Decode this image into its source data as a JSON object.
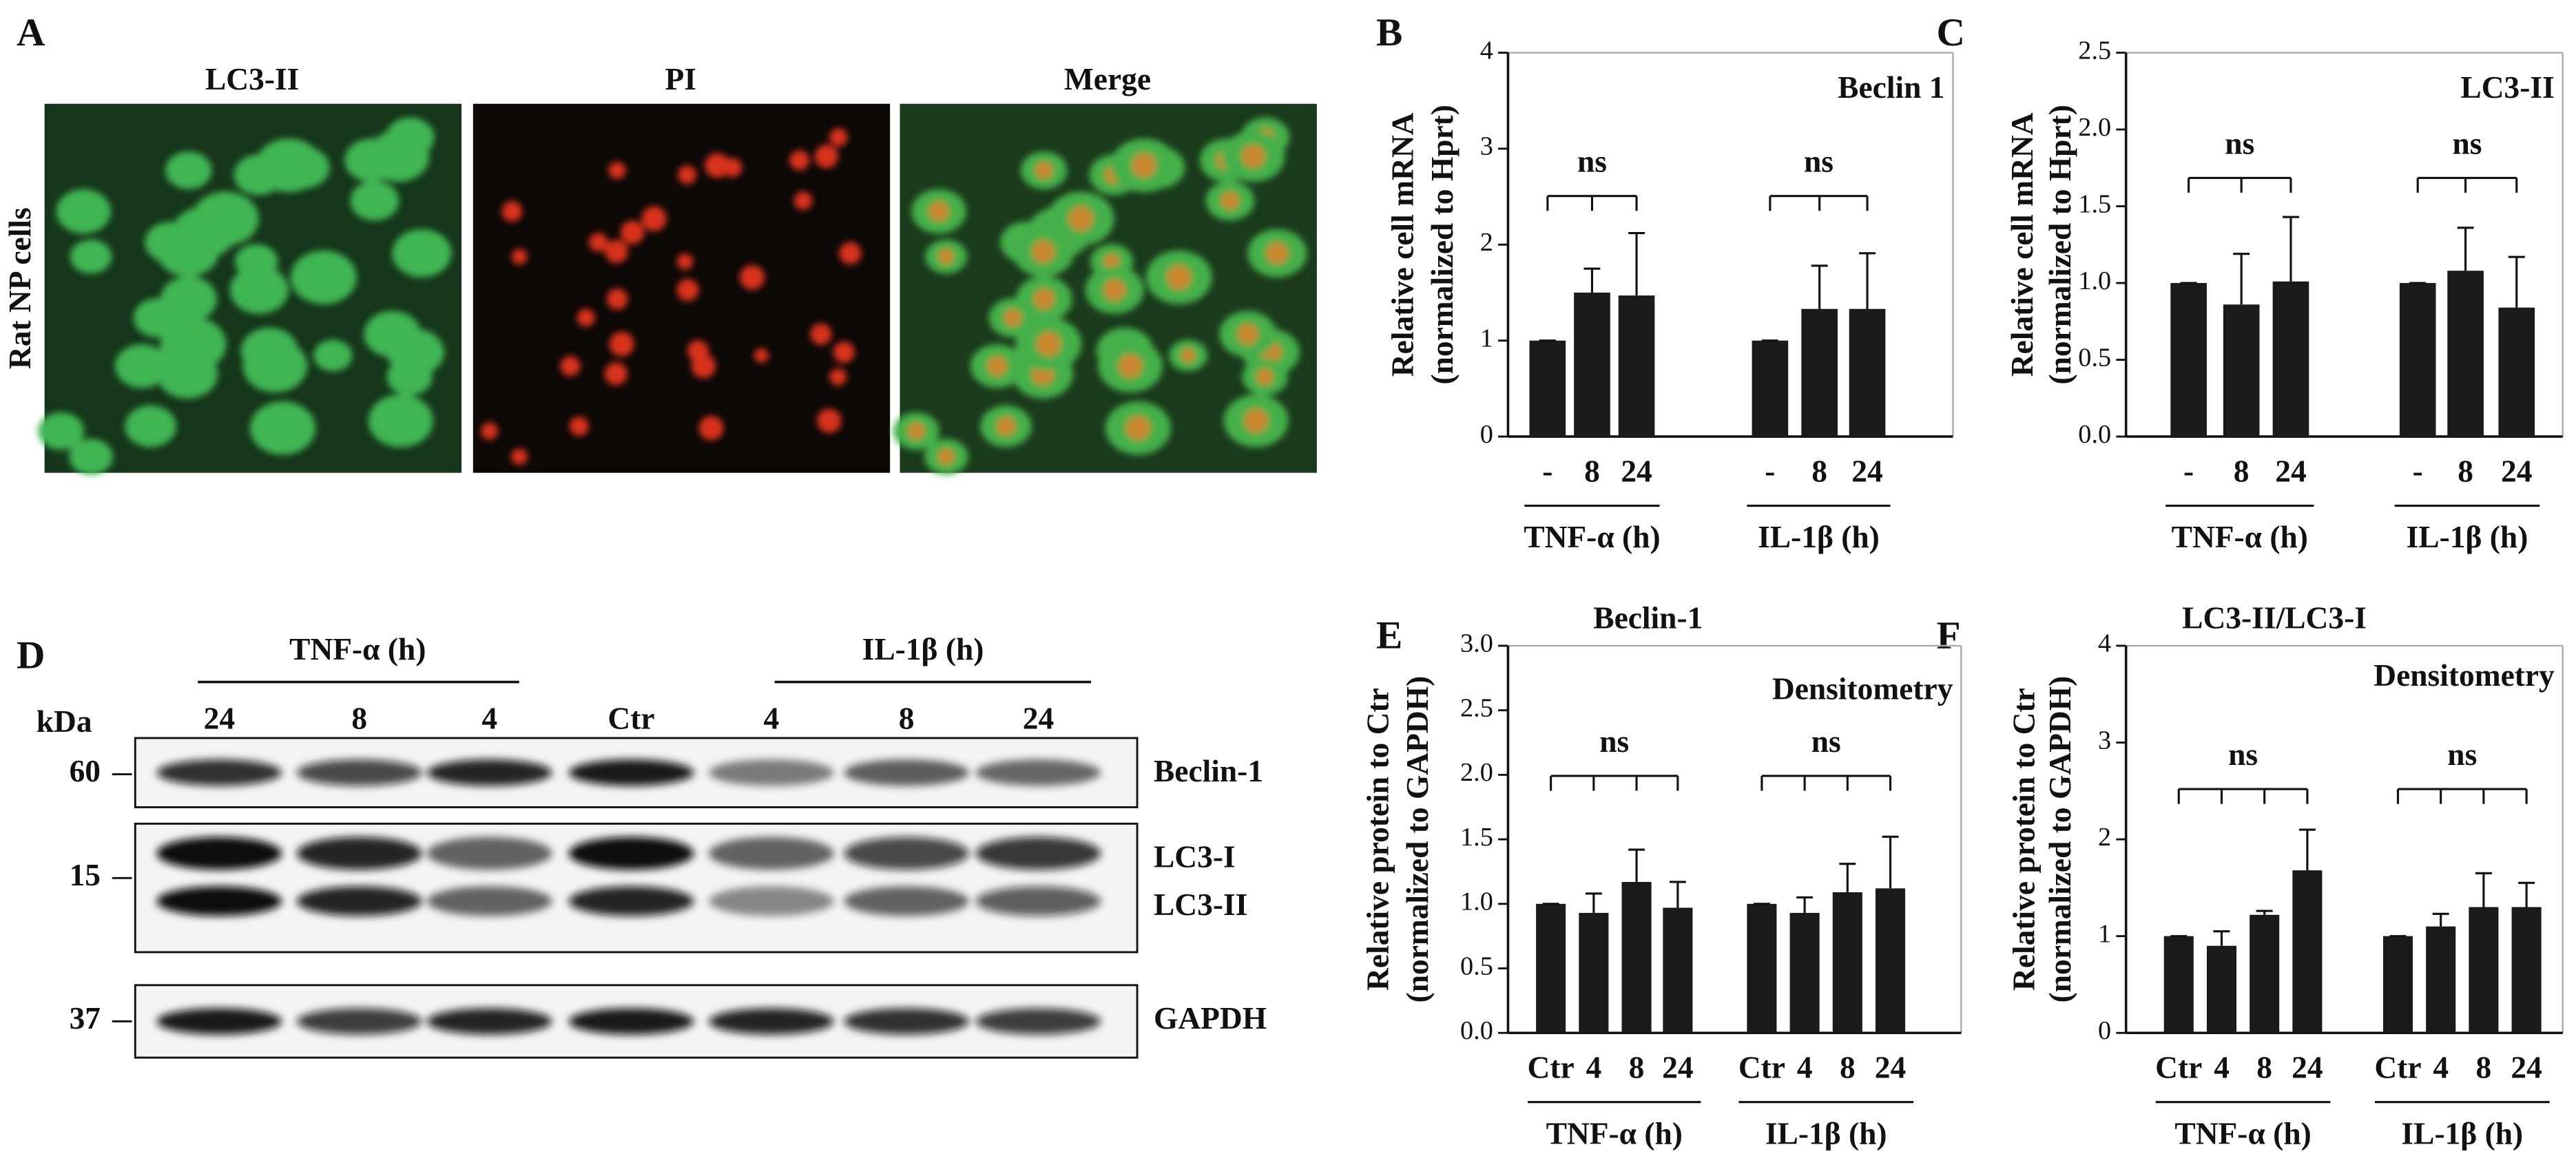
{
  "panel_labels": [
    "A",
    "B",
    "C",
    "D",
    "E",
    "F"
  ],
  "micrographs": {
    "titles": [
      "LC3-II",
      "PI",
      "Merge"
    ],
    "row_label": "Rat NP cells"
  },
  "blot": {
    "unit": "kDa",
    "groups": [
      "TNF-α (h)",
      "IL-1β (h)"
    ],
    "lanes": [
      "24",
      "8",
      "4",
      "Ctr",
      "4",
      "8",
      "24"
    ],
    "markers": [
      "60",
      "15",
      "37"
    ],
    "bands": [
      "Beclin-1",
      "LC3-I",
      "LC3-II",
      "GAPDH"
    ]
  },
  "chart_data": [
    {
      "type": "bar",
      "y_label": [
        "Relative cell mRNA",
        "(normalized to Hprt)"
      ],
      "annotation": "Beclin 1",
      "categories": [
        "-",
        "8",
        "24",
        "-",
        "8",
        "24"
      ],
      "groups": [
        "TNF-α (h)",
        "IL-1β (h)"
      ],
      "values": [
        1.0,
        1.5,
        1.47,
        1.0,
        1.33,
        1.33
      ],
      "errors": [
        0,
        0.25,
        0.65,
        0,
        0.45,
        0.58
      ],
      "brackets": [
        "ns",
        "ns"
      ],
      "ylim": [
        0,
        4
      ],
      "yticks": [
        0,
        1,
        2,
        3,
        4
      ],
      "color": "#1a1a1a"
    },
    {
      "type": "bar",
      "y_label": [
        "Relative cell mRNA",
        "(normalized to Hprt)"
      ],
      "annotation": "LC3-II",
      "categories": [
        "-",
        "8",
        "24",
        "-",
        "8",
        "24"
      ],
      "groups": [
        "TNF-α (h)",
        "IL-1β (h)"
      ],
      "values": [
        1.0,
        0.86,
        1.01,
        1.0,
        1.08,
        0.84
      ],
      "errors": [
        0,
        0.33,
        0.42,
        0,
        0.28,
        0.33
      ],
      "brackets": [
        "ns",
        "ns"
      ],
      "ylim": [
        0,
        2.5
      ],
      "yticks": [
        {
          "value": 0,
          "label": "0.0"
        },
        {
          "value": 0.5,
          "label": "0.5"
        },
        {
          "value": 1,
          "label": "1.0"
        },
        {
          "value": 1.5,
          "label": "1.5"
        },
        {
          "value": 2,
          "label": "2.0"
        },
        {
          "value": 2.5,
          "label": "2.5"
        }
      ],
      "color": "#1a1a1a"
    },
    {
      "type": "bar",
      "title": "Beclin-1",
      "y_label": [
        "Relative protein to Ctr",
        "(normalized to GAPDH)"
      ],
      "annotation": "Densitometry",
      "categories": [
        "Ctr",
        "4",
        "8",
        "24",
        "Ctr",
        "4",
        "8",
        "24"
      ],
      "groups": [
        "TNF-α (h)",
        "IL-1β (h)"
      ],
      "values": [
        1.0,
        0.93,
        1.17,
        0.97,
        1.0,
        0.93,
        1.09,
        1.12
      ],
      "errors": [
        0,
        0.15,
        0.25,
        0.2,
        0,
        0.12,
        0.22,
        0.4
      ],
      "brackets": [
        "ns",
        "ns"
      ],
      "ylim": [
        0,
        3
      ],
      "yticks": [
        {
          "value": 0,
          "label": "0.0"
        },
        {
          "value": 0.5,
          "label": "0.5"
        },
        {
          "value": 1,
          "label": "1.0"
        },
        {
          "value": 1.5,
          "label": "1.5"
        },
        {
          "value": 2,
          "label": "2.0"
        },
        {
          "value": 2.5,
          "label": "2.5"
        },
        {
          "value": 3,
          "label": "3.0"
        }
      ],
      "color": "#1a1a1a"
    },
    {
      "type": "bar",
      "title": "LC3-II/LC3-I",
      "y_label": [
        "Relative protein to Ctr",
        "(normalized to GAPDH)"
      ],
      "annotation": "Densitometry",
      "categories": [
        "Ctr",
        "4",
        "8",
        "24",
        "Ctr",
        "4",
        "8",
        "24"
      ],
      "groups": [
        "TNF-α (h)",
        "IL-1β (h)"
      ],
      "values": [
        1.0,
        0.9,
        1.22,
        1.68,
        1.0,
        1.1,
        1.3,
        1.3
      ],
      "errors": [
        0,
        0.15,
        0.04,
        0.42,
        0,
        0.13,
        0.35,
        0.25
      ],
      "brackets": [
        "ns",
        "ns"
      ],
      "ylim": [
        0,
        4
      ],
      "yticks": [
        0,
        1,
        2,
        3,
        4
      ],
      "color": "#1a1a1a"
    }
  ]
}
